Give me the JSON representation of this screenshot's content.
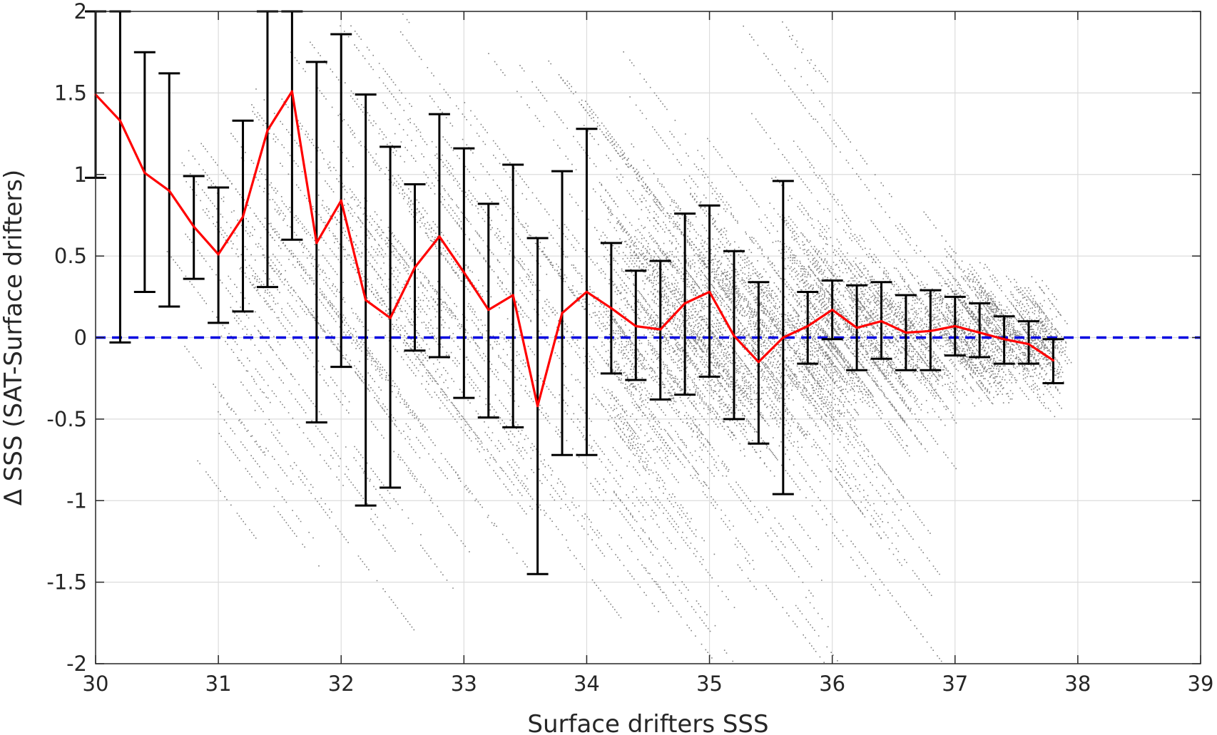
{
  "chart_data": {
    "type": "scatter",
    "title": "",
    "xlabel": "Surface drifters SSS",
    "ylabel": "Δ SSS (SAT-Surface drifters)",
    "xlim": [
      30,
      39
    ],
    "ylim": [
      -2,
      2
    ],
    "xticks": [
      "30",
      "31",
      "32",
      "33",
      "34",
      "35",
      "36",
      "37",
      "38",
      "39"
    ],
    "yticks": [
      "-2",
      "-1.5",
      "-1",
      "-0.5",
      "0",
      "0.5",
      "1",
      "1.5",
      "2"
    ],
    "grid": true,
    "legend": "none",
    "colors": {
      "mean_line": "#ff0000",
      "error_bars": "#000000",
      "zero_line": "#0000e0",
      "scatter": "#808080"
    },
    "series": [
      {
        "type": "line",
        "x": [
          30.0,
          30.2,
          30.4,
          30.6,
          30.8,
          31.0,
          31.2,
          31.4,
          31.6,
          31.8,
          32.0,
          32.2,
          32.4,
          32.6,
          32.8,
          33.0,
          33.2,
          33.4,
          33.6,
          33.8,
          34.0,
          34.2,
          34.4,
          34.6,
          34.8,
          35.0,
          35.2,
          35.4,
          35.6,
          35.8,
          36.0,
          36.2,
          36.4,
          36.6,
          36.8,
          37.0,
          37.2,
          37.4,
          37.6,
          37.8
        ],
        "y": [
          1.49,
          1.33,
          1.01,
          0.9,
          0.68,
          0.51,
          0.74,
          1.27,
          1.51,
          0.58,
          0.84,
          0.23,
          0.12,
          0.43,
          0.62,
          0.4,
          0.17,
          0.26,
          -0.42,
          0.15,
          0.28,
          0.18,
          0.07,
          0.05,
          0.21,
          0.28,
          0.01,
          -0.15,
          0.0,
          0.07,
          0.17,
          0.06,
          0.1,
          0.03,
          0.04,
          0.07,
          0.03,
          -0.01,
          -0.04,
          -0.14
        ],
        "error_low": [
          0.98,
          -0.03,
          0.28,
          0.19,
          0.36,
          0.09,
          0.16,
          0.31,
          0.6,
          -0.52,
          -0.18,
          -1.03,
          -0.92,
          -0.08,
          -0.12,
          -0.37,
          -0.49,
          -0.55,
          -1.45,
          -0.72,
          -0.72,
          -0.22,
          -0.26,
          -0.38,
          -0.35,
          -0.24,
          -0.5,
          -0.65,
          -0.96,
          -0.16,
          -0.01,
          -0.2,
          -0.13,
          -0.2,
          -0.2,
          -0.11,
          -0.12,
          -0.16,
          -0.16,
          -0.28
        ],
        "error_high": [
          2.0,
          2.0,
          1.75,
          1.62,
          0.99,
          0.92,
          1.33,
          2.0,
          2.0,
          1.69,
          1.86,
          1.49,
          1.17,
          0.94,
          1.37,
          1.16,
          0.82,
          1.06,
          0.61,
          1.02,
          1.28,
          0.58,
          0.41,
          0.47,
          0.76,
          0.81,
          0.53,
          0.34,
          0.96,
          0.28,
          0.35,
          0.32,
          0.34,
          0.26,
          0.29,
          0.25,
          0.21,
          0.13,
          0.1,
          -0.01
        ]
      },
      {
        "type": "hline",
        "y": 0
      }
    ]
  }
}
